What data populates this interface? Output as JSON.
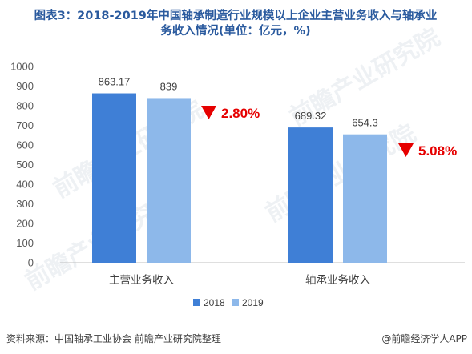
{
  "chart_data": {
    "type": "bar",
    "title_line1": "图表3：2018-2019年中国轴承制造行业规模以上企业主营业务收入与轴承业",
    "title_line2": "务收入情况(单位：亿元，%)",
    "categories": [
      "主营业务收入",
      "轴承业务收入"
    ],
    "series": [
      {
        "name": "2018",
        "values": [
          863.17,
          689.32
        ],
        "labels": [
          "863.17",
          "689.32"
        ]
      },
      {
        "name": "2019",
        "values": [
          839,
          654.3
        ],
        "labels": [
          "839",
          "654.3"
        ]
      }
    ],
    "ylim": [
      0,
      1000
    ],
    "yticks": [
      "0",
      "100",
      "200",
      "300",
      "400",
      "500",
      "600",
      "700",
      "800",
      "900",
      "1000"
    ],
    "annotations": [
      "2.80%",
      "5.08%"
    ],
    "legend_position": "bottom",
    "grid": false
  },
  "footer": {
    "source": "资料来源：中国轴承工业协会 前瞻产业研究院整理",
    "brand": "@前瞻经济学人APP"
  },
  "watermark": {
    "text": "前瞻产业研究院"
  },
  "colors": {
    "series_2018": "#3f7fd6",
    "series_2019": "#8db8ea",
    "decrease": "#e60000",
    "title": "#2a5a9e"
  }
}
